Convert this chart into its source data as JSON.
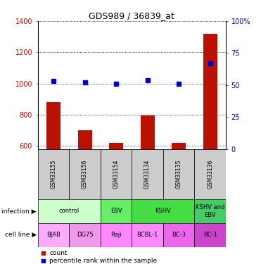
{
  "title": "GDS989 / 36839_at",
  "samples": [
    "GSM33155",
    "GSM33156",
    "GSM33154",
    "GSM33134",
    "GSM33135",
    "GSM33136"
  ],
  "counts": [
    880,
    700,
    620,
    797,
    618,
    1320
  ],
  "percentiles": [
    53,
    52,
    51,
    54,
    51,
    67
  ],
  "ylim_left": [
    580,
    1400
  ],
  "ylim_right": [
    0,
    100
  ],
  "yticks_left": [
    600,
    800,
    1000,
    1200,
    1400
  ],
  "yticks_right": [
    0,
    25,
    50,
    75,
    100
  ],
  "bar_color": "#bb1100",
  "dot_color": "#0000cc",
  "infection_groups": [
    {
      "label": "control",
      "start": 0,
      "end": 2,
      "color": "#ccffcc"
    },
    {
      "label": "EBV",
      "start": 2,
      "end": 3,
      "color": "#66ee66"
    },
    {
      "label": "KSHV",
      "start": 3,
      "end": 5,
      "color": "#44dd44"
    },
    {
      "label": "KSHV and\nEBV",
      "start": 5,
      "end": 6,
      "color": "#44cc66"
    }
  ],
  "cell_line_labels": [
    "BJAB",
    "DG75",
    "Raji",
    "BCBL-1",
    "BC-3",
    "BC-1"
  ],
  "cell_line_colors": [
    "#ffaaff",
    "#ee99ee",
    "#ff88ff",
    "#ff88ff",
    "#ee66ee",
    "#cc44cc"
  ],
  "sample_bg_color": "#cccccc",
  "legend_count_color": "#bb1100",
  "legend_pct_color": "#0000cc",
  "fig_width": 3.71,
  "fig_height": 3.75,
  "dpi": 100
}
